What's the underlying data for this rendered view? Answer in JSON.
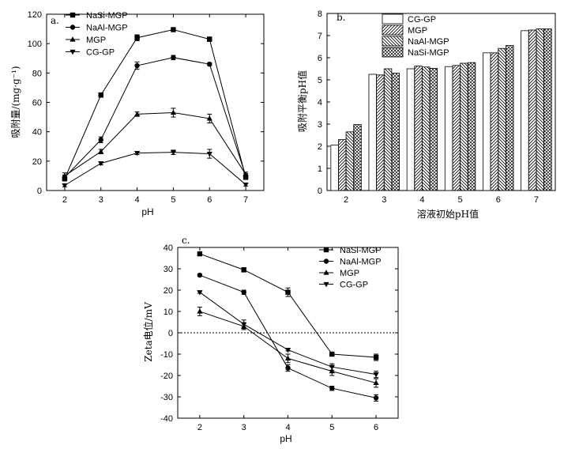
{
  "chart_data": [
    {
      "id": "a",
      "type": "line",
      "panel_label": "a.",
      "title": "",
      "xlabel": "pH",
      "ylabel": "吸附量/(mg·g⁻¹)",
      "x": [
        2,
        3,
        4,
        5,
        6,
        7
      ],
      "xlim": [
        1.5,
        7.5
      ],
      "ylim": [
        0,
        120
      ],
      "xticks": [
        "2",
        "3",
        "4",
        "5",
        "6",
        "7"
      ],
      "yticks": [
        0,
        20,
        40,
        60,
        80,
        100,
        120
      ],
      "legend_position": "top-left",
      "series": [
        {
          "name": "NaSi-MGP",
          "marker": "square",
          "values": [
            8,
            65,
            104,
            109.5,
            103,
            9
          ],
          "errors": [
            1.5,
            1.5,
            2,
            1,
            1.5,
            1.5
          ]
        },
        {
          "name": "NaAl-MGP",
          "marker": "circle",
          "values": [
            9,
            34.5,
            85,
            90.5,
            86,
            10
          ],
          "errors": [
            1.5,
            2,
            2.5,
            1.5,
            1,
            1.5
          ]
        },
        {
          "name": "MGP",
          "marker": "triangle-up",
          "values": [
            10,
            26.5,
            52,
            53,
            49,
            11
          ],
          "errors": [
            2,
            1.5,
            1.5,
            3,
            3,
            1.5
          ]
        },
        {
          "name": "CG-GP",
          "marker": "triangle-down",
          "values": [
            3.5,
            18.5,
            25.5,
            26,
            25,
            4
          ],
          "errors": [
            1,
            1,
            1,
            1.5,
            3,
            1
          ]
        }
      ]
    },
    {
      "id": "b",
      "type": "bar",
      "panel_label": "b.",
      "title": "",
      "xlabel": "溶液初始pH值",
      "ylabel": "吸附平衡pH值",
      "categories": [
        "2",
        "3",
        "4",
        "5",
        "6",
        "7"
      ],
      "ylim": [
        0,
        8
      ],
      "yticks": [
        0,
        1,
        2,
        3,
        4,
        5,
        6,
        7,
        8
      ],
      "legend_position": "top-left",
      "series": [
        {
          "name": "CG-GP",
          "pattern": "blank",
          "values": [
            2.05,
            5.25,
            5.5,
            5.6,
            6.22,
            7.22
          ]
        },
        {
          "name": "MGP",
          "pattern": "forward-diagonal",
          "values": [
            2.3,
            5.22,
            5.62,
            5.65,
            6.22,
            7.25
          ]
        },
        {
          "name": "NaAl-MGP",
          "pattern": "backward-diagonal",
          "values": [
            2.65,
            5.5,
            5.58,
            5.75,
            6.42,
            7.3
          ]
        },
        {
          "name": "NaSi-MGP",
          "pattern": "crosshatch",
          "values": [
            2.98,
            5.3,
            5.52,
            5.78,
            6.55,
            7.3
          ]
        }
      ]
    },
    {
      "id": "c",
      "type": "line",
      "panel_label": "c.",
      "title": "",
      "xlabel": "pH",
      "ylabel": "Zeta电位/mV",
      "x": [
        2,
        3,
        4,
        5,
        6
      ],
      "xlim": [
        1.5,
        6.5
      ],
      "ylim": [
        -40,
        40
      ],
      "xticks": [
        "2",
        "3",
        "4",
        "5",
        "6"
      ],
      "yticks": [
        -40,
        -30,
        -20,
        -10,
        0,
        10,
        20,
        30,
        40
      ],
      "reference_line": {
        "y": 0,
        "style": "dotted"
      },
      "legend_position": "top-right",
      "series": [
        {
          "name": "NaSi-MGP",
          "marker": "square",
          "values": [
            37,
            29.5,
            19,
            -10,
            -11.5
          ],
          "errors": [
            0.5,
            1,
            2,
            0.5,
            1.5
          ]
        },
        {
          "name": "NaAl-MGP",
          "marker": "circle",
          "values": [
            27,
            19,
            -16.5,
            -26,
            -30.5
          ],
          "errors": [
            0.5,
            1,
            1.5,
            1,
            1.5
          ]
        },
        {
          "name": "MGP",
          "marker": "triangle-up",
          "values": [
            10,
            3,
            -12,
            -18,
            -23.5
          ],
          "errors": [
            2,
            1.5,
            2,
            2,
            2
          ]
        },
        {
          "name": "CG-GP",
          "marker": "triangle-down",
          "values": [
            19,
            4,
            -8,
            -16,
            -19.5
          ],
          "errors": [
            0.5,
            2,
            0.5,
            1.5,
            1.5
          ]
        }
      ]
    }
  ]
}
